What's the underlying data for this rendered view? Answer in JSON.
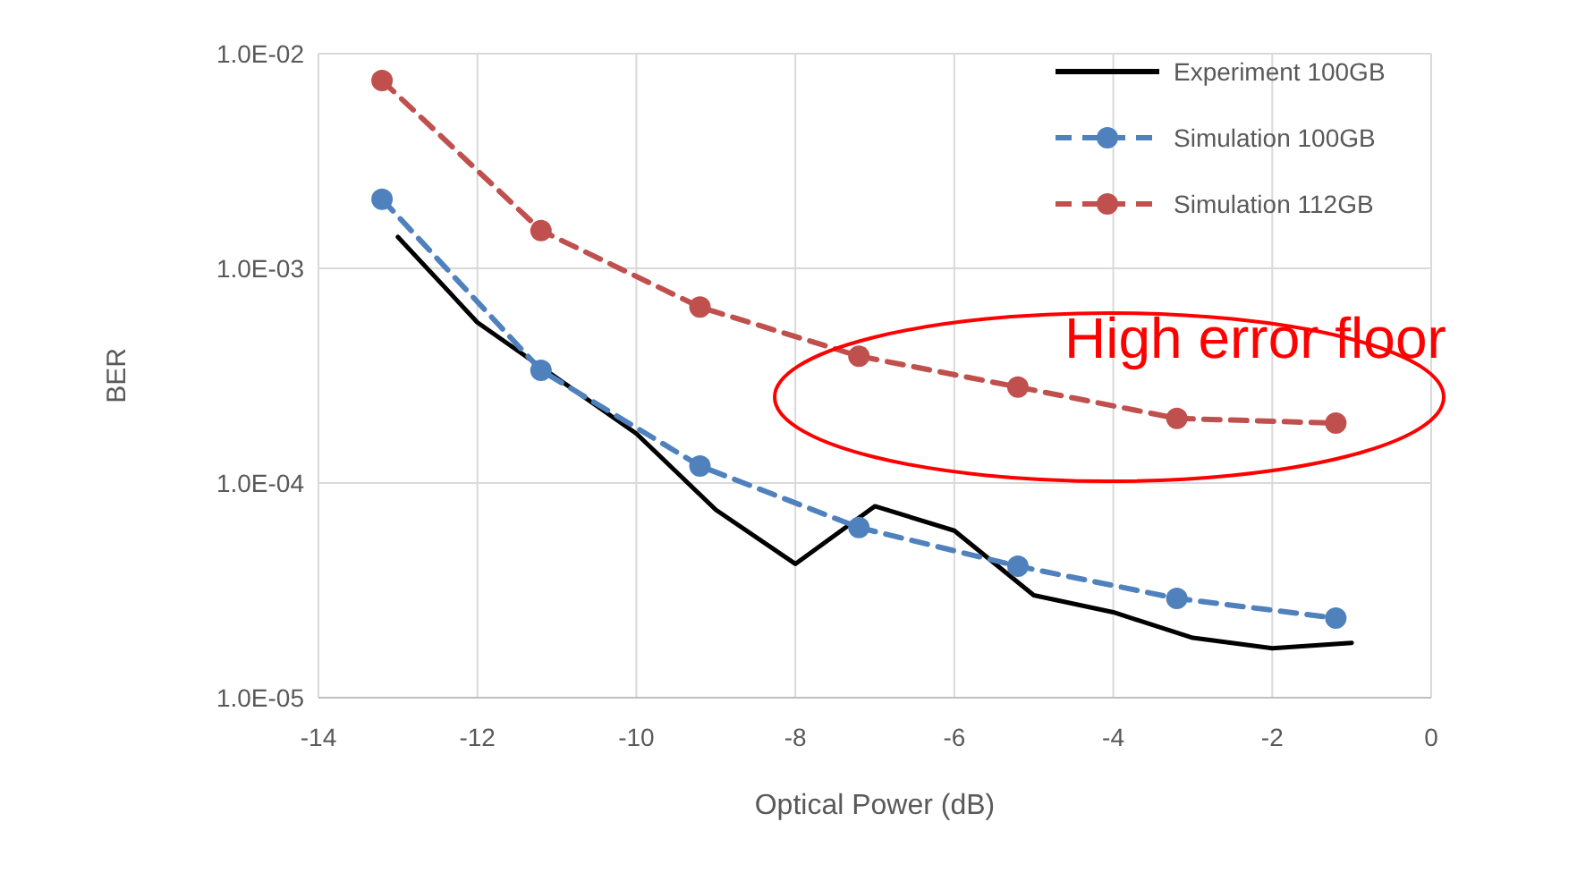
{
  "chart_data": {
    "type": "line",
    "xlabel": "Optical Power (dB)",
    "ylabel": "BER",
    "log": "y",
    "grid": true,
    "legend": "top right",
    "xlim": [
      -14,
      0
    ],
    "xticks": [
      -14,
      -12,
      -10,
      -8,
      -6,
      -4,
      -2,
      0
    ],
    "ylim": [
      1e-05,
      0.01
    ],
    "yticks": [
      {
        "value": 1e-05,
        "label": "1.0E-05"
      },
      {
        "value": 0.0001,
        "label": "1.0E-04"
      },
      {
        "value": 0.001,
        "label": "1.0E-03"
      },
      {
        "value": 0.01,
        "label": "1.0E-02"
      }
    ],
    "series": [
      {
        "name": "Experiment 100GB",
        "color": "#000000",
        "marker": "none",
        "line_style": "solid",
        "x": [
          -13,
          -12,
          -10,
          -9,
          -8,
          -7,
          -6,
          -5,
          -4,
          -3,
          -2,
          -1
        ],
        "values": [
          0.0014,
          0.00056,
          0.00017,
          7.5e-05,
          4.2e-05,
          7.8e-05,
          6e-05,
          3e-05,
          2.5e-05,
          1.9e-05,
          1.7e-05,
          1.8e-05
        ]
      },
      {
        "name": "Simulation 100GB",
        "color": "#4f81bd",
        "marker": "circle",
        "line_style": "dashed",
        "x": [
          -13.2,
          -11.2,
          -9.2,
          -7.2,
          -5.2,
          -3.2,
          -1.2
        ],
        "values": [
          0.0021,
          0.000335,
          0.00012,
          6.2e-05,
          4.1e-05,
          2.9e-05,
          2.35e-05
        ]
      },
      {
        "name": "Simulation 112GB",
        "color": "#c0504d",
        "marker": "circle",
        "line_style": "dashed",
        "x": [
          -13.2,
          -11.2,
          -9.2,
          -7.2,
          -5.2,
          -3.2,
          -1.2
        ],
        "values": [
          0.0075,
          0.0015,
          0.00066,
          0.00039,
          0.00028,
          0.0002,
          0.00019
        ]
      }
    ],
    "annotations": [
      "High error floor"
    ]
  }
}
